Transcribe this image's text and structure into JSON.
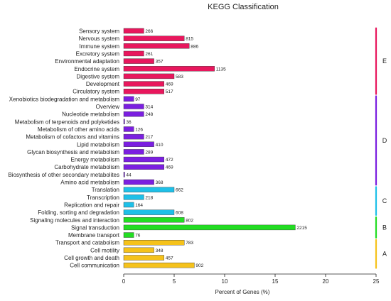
{
  "chart_data": {
    "type": "bar",
    "orientation": "horizontal",
    "title": "KEGG Classification",
    "xlabel": "Percent of Genes (%)",
    "ylabel": "",
    "xlim": [
      0,
      25
    ],
    "x_ticks": [
      "0",
      "5",
      "10",
      "15",
      "20",
      "25"
    ],
    "grid": false,
    "legend": "none",
    "colors": {
      "E": "#e8175d",
      "D": "#7b1fe0",
      "C": "#1ec0e8",
      "B": "#22dd22",
      "A": "#f5c21b"
    },
    "bars": [
      {
        "label": "Sensory system",
        "group": "E",
        "percent": 2.0,
        "count": "266"
      },
      {
        "label": "Nervous system",
        "group": "E",
        "percent": 6.0,
        "count": "815"
      },
      {
        "label": "Immune system",
        "group": "E",
        "percent": 6.5,
        "count": "886"
      },
      {
        "label": "Excretory system",
        "group": "E",
        "percent": 2.0,
        "count": "261"
      },
      {
        "label": "Environmental adaptation",
        "group": "E",
        "percent": 3.0,
        "count": "357"
      },
      {
        "label": "Endocrine system",
        "group": "E",
        "percent": 9.0,
        "count": "1135"
      },
      {
        "label": "Digestive system",
        "group": "E",
        "percent": 5.0,
        "count": "583"
      },
      {
        "label": "Development",
        "group": "E",
        "percent": 4.0,
        "count": "469"
      },
      {
        "label": "Circulatory system",
        "group": "E",
        "percent": 4.0,
        "count": "517"
      },
      {
        "label": "Xenobiotics biodegradation and metabolism",
        "group": "D",
        "percent": 1.0,
        "count": "97"
      },
      {
        "label": "Overview",
        "group": "D",
        "percent": 2.0,
        "count": "314"
      },
      {
        "label": "Nucleotide metabolism",
        "group": "D",
        "percent": 2.0,
        "count": "248"
      },
      {
        "label": "Metabolism of terpenoids and polyketides",
        "group": "D",
        "percent": 0.1,
        "count": "36"
      },
      {
        "label": "Metabolism of other amino acids",
        "group": "D",
        "percent": 1.0,
        "count": "126"
      },
      {
        "label": "Metabolism of cofactors and vitamins",
        "group": "D",
        "percent": 2.0,
        "count": "217"
      },
      {
        "label": "Lipid metabolism",
        "group": "D",
        "percent": 3.0,
        "count": "410"
      },
      {
        "label": "Glycan biosynthesis and metabolism",
        "group": "D",
        "percent": 2.0,
        "count": "289"
      },
      {
        "label": "Energy metabolism",
        "group": "D",
        "percent": 4.0,
        "count": "472"
      },
      {
        "label": "Carbohydrate metabolism",
        "group": "D",
        "percent": 4.0,
        "count": "469"
      },
      {
        "label": "Biosynthesis of other secondary metabolites",
        "group": "D",
        "percent": 0.1,
        "count": "44"
      },
      {
        "label": "Amino acid metabolism",
        "group": "D",
        "percent": 3.0,
        "count": "368"
      },
      {
        "label": "Translation",
        "group": "C",
        "percent": 5.0,
        "count": "662"
      },
      {
        "label": "Transcription",
        "group": "C",
        "percent": 2.0,
        "count": "218"
      },
      {
        "label": "Replication and repair",
        "group": "C",
        "percent": 1.0,
        "count": "164"
      },
      {
        "label": "Folding, sorting and degradation",
        "group": "C",
        "percent": 5.0,
        "count": "608"
      },
      {
        "label": "Signaling molecules and interaction",
        "group": "B",
        "percent": 6.0,
        "count": "802"
      },
      {
        "label": "Signal transduction",
        "group": "B",
        "percent": 17.0,
        "count": "2215"
      },
      {
        "label": "Membrane transport",
        "group": "B",
        "percent": 1.0,
        "count": "76"
      },
      {
        "label": "Transport and catabolism",
        "group": "A",
        "percent": 6.0,
        "count": "783"
      },
      {
        "label": "Cell motility",
        "group": "A",
        "percent": 3.0,
        "count": "348"
      },
      {
        "label": "Cell growth and death",
        "group": "A",
        "percent": 4.0,
        "count": "457"
      },
      {
        "label": "Cell communication",
        "group": "A",
        "percent": 7.0,
        "count": "902"
      }
    ],
    "group_labels": [
      "E",
      "D",
      "C",
      "B",
      "A"
    ]
  }
}
